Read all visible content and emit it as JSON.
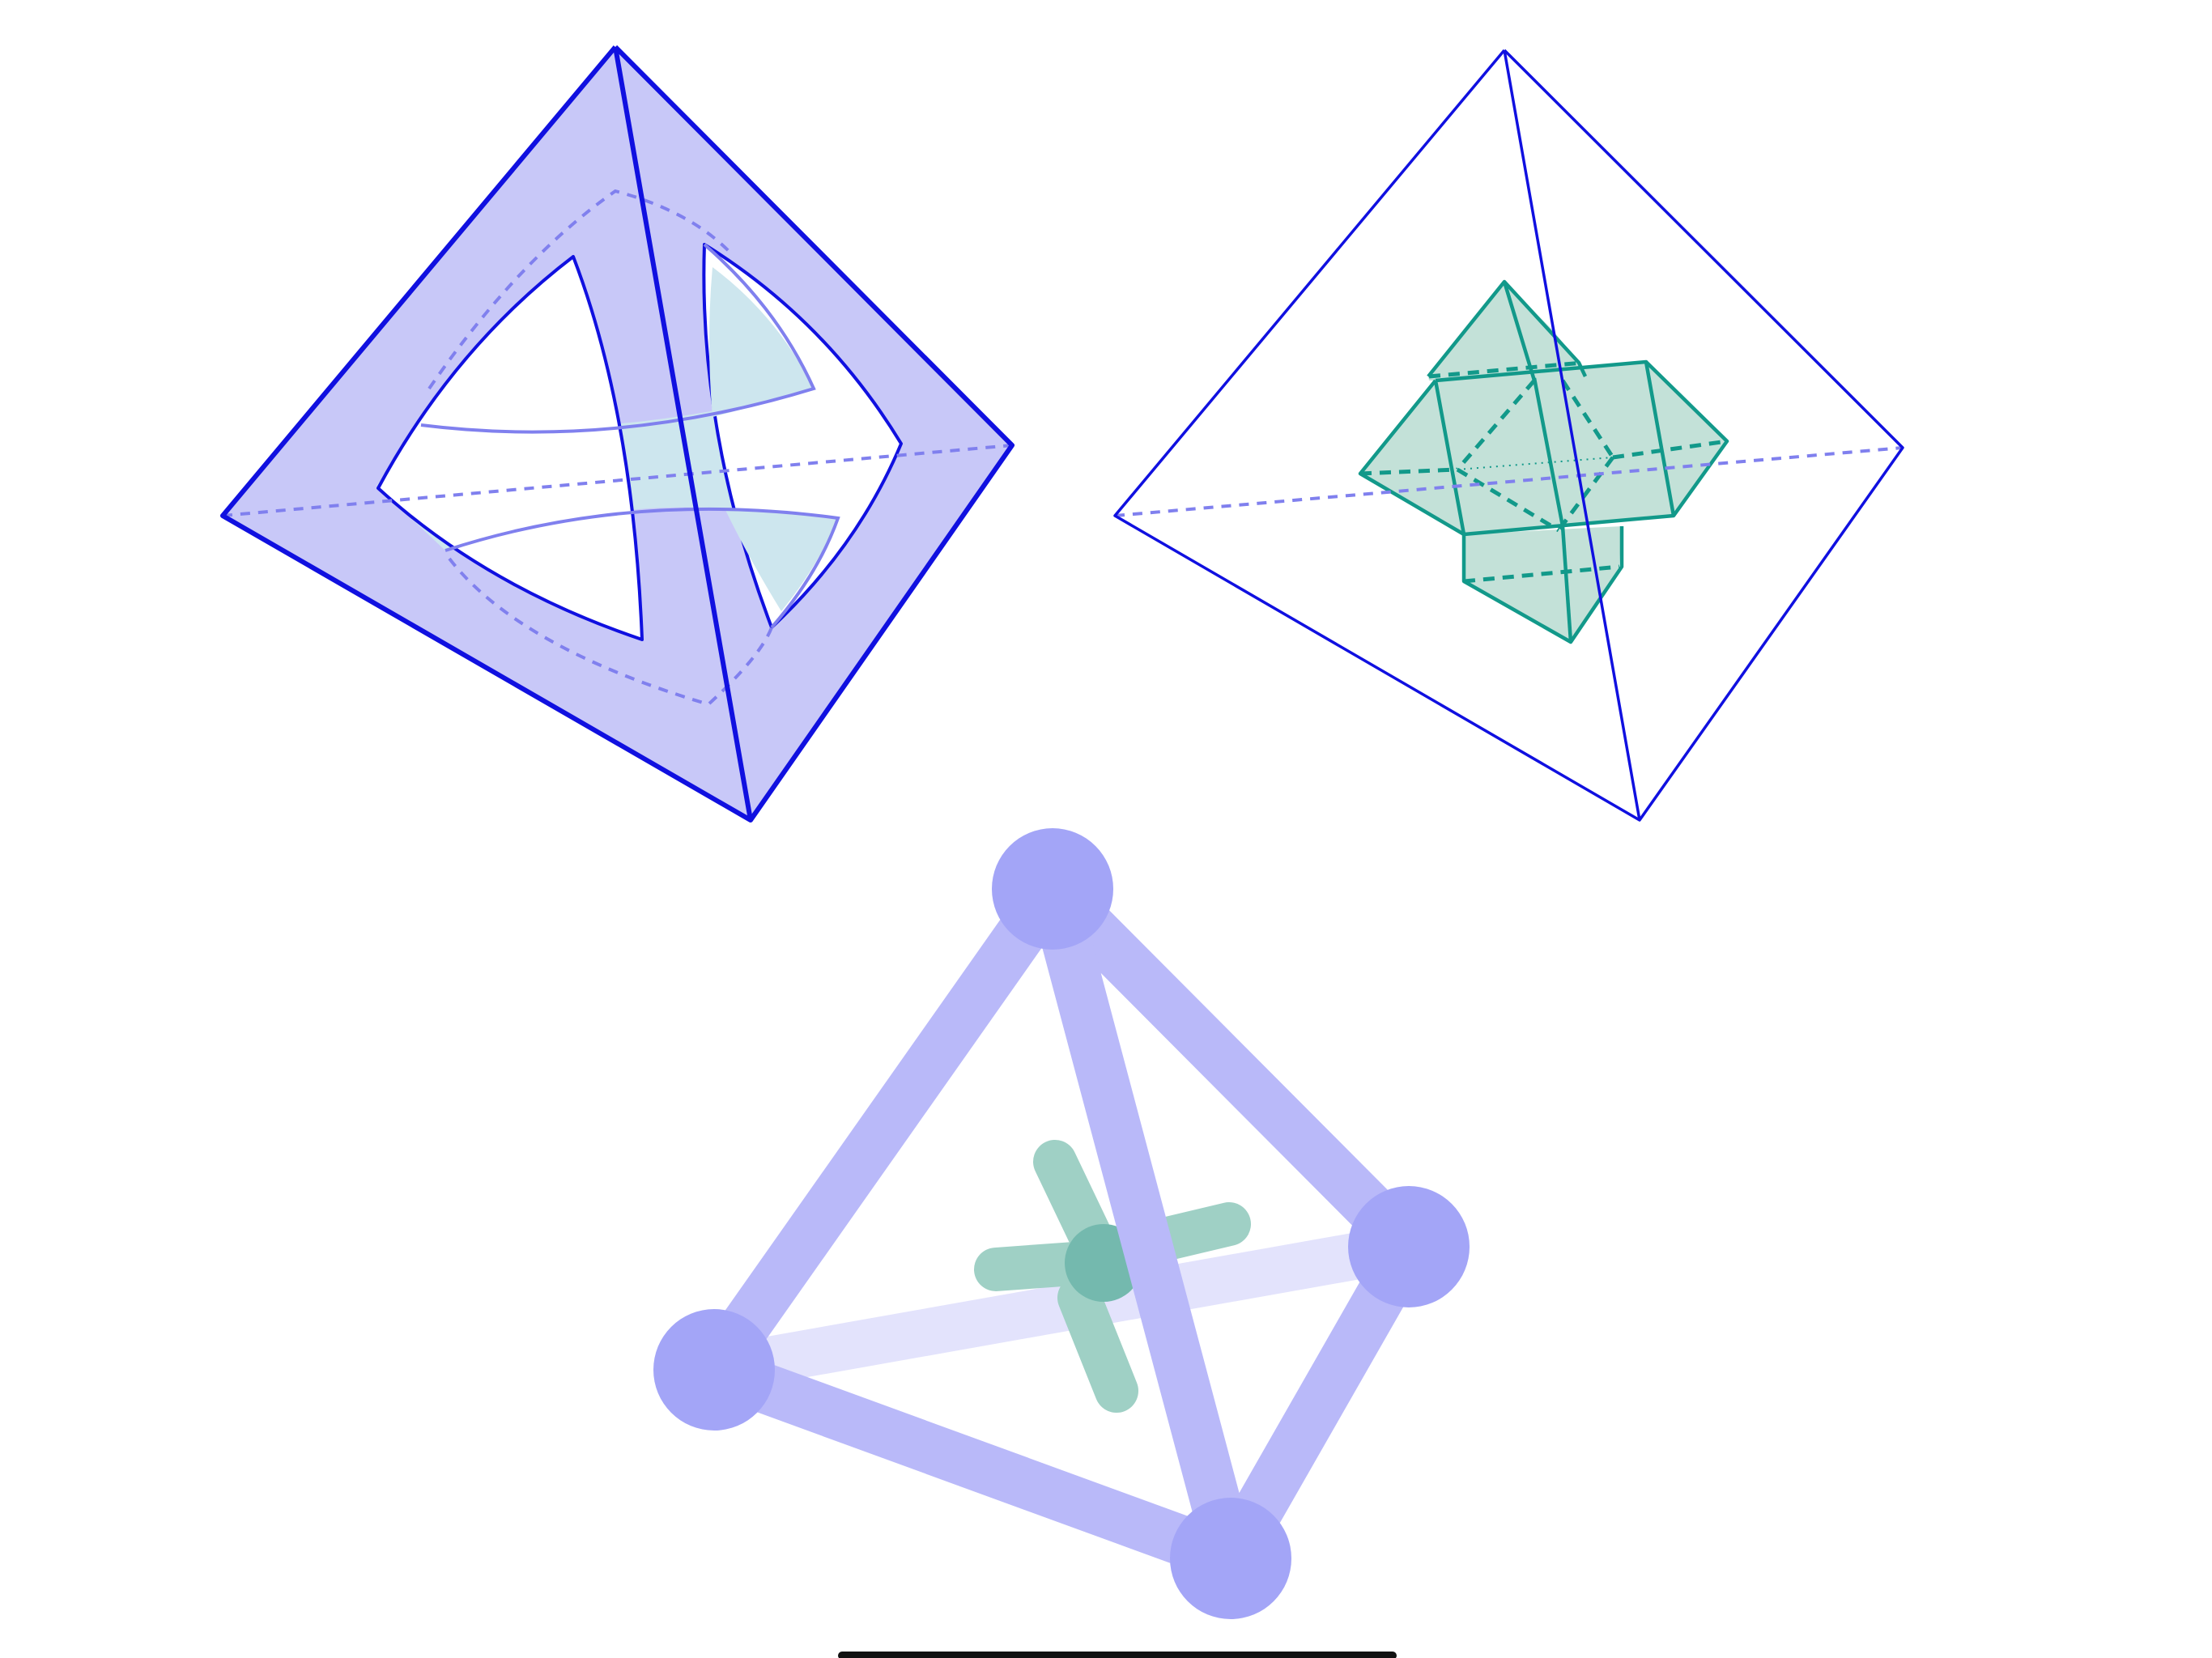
{
  "colors": {
    "background": "#ffffff",
    "edge_blue": "#1010e0",
    "hidden_blue": "#8080ee",
    "face_fill": "#c8c8f8",
    "band_fill": "#cde6ee",
    "teal": "#12998a",
    "teal_fill": "#c3e1d8",
    "node_purple": "#a3a5f7",
    "bar_purple": "#b9b9f9",
    "back_bar": "#e3e3fc",
    "stick_teal": "#9fd0c5",
    "hub_teal": "#74b9ae",
    "home_indicator": "#111111"
  },
  "figures": [
    {
      "id": "tetrahedron-with-curved-openings",
      "style": "shaded-faces"
    },
    {
      "id": "tetrahedron-with-inner-cross-polyhedron",
      "style": "wireframe"
    },
    {
      "id": "tetrahedron-ball-and-stick",
      "style": "ball-and-stick"
    }
  ],
  "home_indicator": {
    "visible": true
  }
}
